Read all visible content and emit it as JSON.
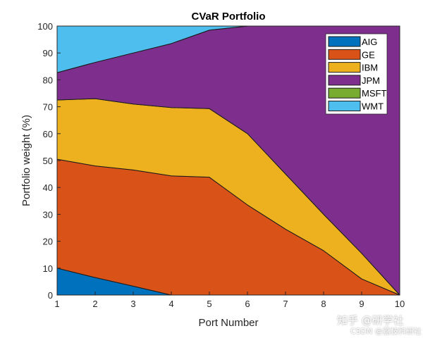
{
  "chart_data": {
    "type": "area",
    "stacked": true,
    "title": "CVaR Portfolio",
    "xlabel": "Port Number",
    "ylabel": "Portfolio weight (%)",
    "xlim": [
      1,
      10
    ],
    "ylim": [
      0,
      100
    ],
    "x": [
      1,
      2,
      3,
      4,
      5,
      6,
      7,
      8,
      9,
      10
    ],
    "xticks": [
      "1",
      "2",
      "3",
      "4",
      "5",
      "6",
      "7",
      "8",
      "9",
      "10"
    ],
    "yticks": [
      "0",
      "10",
      "20",
      "30",
      "40",
      "50",
      "60",
      "70",
      "80",
      "90",
      "100"
    ],
    "grid": false,
    "legend_position": "top-right",
    "series": [
      {
        "name": "AIG",
        "color": "#0072BD",
        "values": [
          10,
          6.5,
          3.3,
          0,
          0,
          0,
          0,
          0,
          0,
          0
        ]
      },
      {
        "name": "GE",
        "color": "#D95319",
        "values": [
          40.5,
          41.5,
          43.2,
          44.3,
          43.8,
          33.5,
          24.5,
          16.5,
          6,
          0
        ]
      },
      {
        "name": "IBM",
        "color": "#EDB120",
        "values": [
          22,
          25,
          24.5,
          25.4,
          25.5,
          26.5,
          20.5,
          13.5,
          9.5,
          0
        ]
      },
      {
        "name": "JPM",
        "color": "#7E2F8E",
        "values": [
          10.2,
          13.5,
          19,
          23.8,
          29.2,
          40,
          55,
          70,
          84.5,
          100
        ]
      },
      {
        "name": "MSFT",
        "color": "#77AC30",
        "values": [
          0,
          0,
          0,
          0,
          0,
          0,
          0,
          0,
          0,
          0
        ]
      },
      {
        "name": "WMT",
        "color": "#4DBEEE",
        "values": [
          17.3,
          13.5,
          10,
          6.5,
          1.5,
          0,
          0,
          0,
          0,
          0
        ]
      }
    ]
  },
  "watermark": {
    "line1": "知乎 @研学社",
    "line2": "CSDN @荔枝科研社"
  }
}
